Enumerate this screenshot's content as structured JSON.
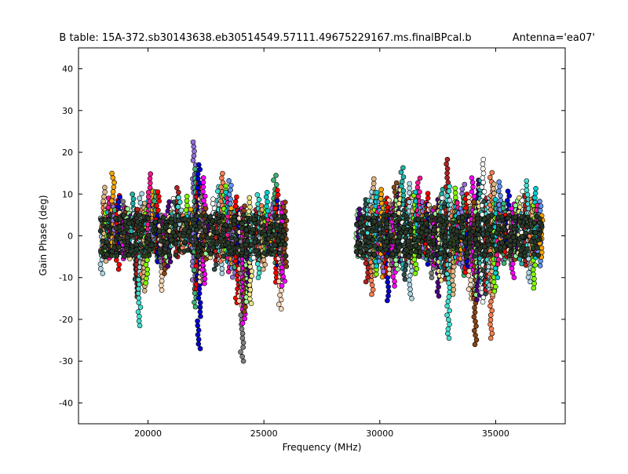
{
  "chart_data": {
    "type": "scatter",
    "title": "B table: 15A-372.sb30143638.eb30514549.57111.49675229167.ms.finalBPcal.b",
    "title_right": "Antenna='ea07'",
    "xlabel": "Frequency (MHz)",
    "ylabel": "Gain Phase (deg)",
    "xlim": [
      17000,
      38000
    ],
    "ylim": [
      -45,
      45
    ],
    "x_ticks": [
      20000,
      25000,
      30000,
      35000
    ],
    "y_ticks": [
      -40,
      -30,
      -20,
      -10,
      0,
      10,
      20,
      30,
      40
    ],
    "grid": false,
    "legend": "none",
    "spectral_windows": [
      {
        "x_start": 17950,
        "x_end": 18450,
        "ymin": -9,
        "ymax": 12
      },
      {
        "x_start": 18450,
        "x_end": 18950,
        "ymin": -8,
        "ymax": 15
      },
      {
        "x_start": 18950,
        "x_end": 19450,
        "ymin": -8,
        "ymax": 10
      },
      {
        "x_start": 19450,
        "x_end": 19950,
        "ymin": -21.5,
        "ymax": 11
      },
      {
        "x_start": 19950,
        "x_end": 20450,
        "ymin": -6,
        "ymax": 15
      },
      {
        "x_start": 20450,
        "x_end": 20950,
        "ymin": -13,
        "ymax": 8.5
      },
      {
        "x_start": 20950,
        "x_end": 21450,
        "ymin": -5,
        "ymax": 12
      },
      {
        "x_start": 21450,
        "x_end": 21950,
        "ymin": -4,
        "ymax": 10
      },
      {
        "x_start": 21950,
        "x_end": 22450,
        "ymin": -27,
        "ymax": 23
      },
      {
        "x_start": 22450,
        "x_end": 22950,
        "ymin": -8,
        "ymax": 9
      },
      {
        "x_start": 22950,
        "x_end": 23450,
        "ymin": -9,
        "ymax": 15.5
      },
      {
        "x_start": 23450,
        "x_end": 23950,
        "ymin": -16,
        "ymax": 14
      },
      {
        "x_start": 23950,
        "x_end": 24450,
        "ymin": -30,
        "ymax": 10
      },
      {
        "x_start": 24450,
        "x_end": 24950,
        "ymin": -10,
        "ymax": 10
      },
      {
        "x_start": 24950,
        "x_end": 25450,
        "ymin": -8,
        "ymax": 11
      },
      {
        "x_start": 25450,
        "x_end": 25950,
        "ymin": -17.5,
        "ymax": 14.5
      },
      {
        "x_start": 29000,
        "x_end": 29500,
        "ymin": -11,
        "ymax": 9
      },
      {
        "x_start": 29500,
        "x_end": 30000,
        "ymin": -14,
        "ymax": 14
      },
      {
        "x_start": 30000,
        "x_end": 30500,
        "ymin": -15.5,
        "ymax": 12
      },
      {
        "x_start": 30500,
        "x_end": 31000,
        "ymin": -12,
        "ymax": 16.5
      },
      {
        "x_start": 31000,
        "x_end": 31500,
        "ymin": -15,
        "ymax": 13.5
      },
      {
        "x_start": 31500,
        "x_end": 32000,
        "ymin": -9,
        "ymax": 14
      },
      {
        "x_start": 32000,
        "x_end": 32500,
        "ymin": -10,
        "ymax": 11
      },
      {
        "x_start": 32500,
        "x_end": 33000,
        "ymin": -24.5,
        "ymax": 19
      },
      {
        "x_start": 33000,
        "x_end": 33500,
        "ymin": -14,
        "ymax": 12
      },
      {
        "x_start": 33500,
        "x_end": 34000,
        "ymin": -15,
        "ymax": 13
      },
      {
        "x_start": 34000,
        "x_end": 34500,
        "ymin": -26,
        "ymax": 19
      },
      {
        "x_start": 34500,
        "x_end": 35000,
        "ymin": -24.5,
        "ymax": 16
      },
      {
        "x_start": 35000,
        "x_end": 35500,
        "ymin": -10,
        "ymax": 13
      },
      {
        "x_start": 35500,
        "x_end": 36000,
        "ymin": -10,
        "ymax": 11
      },
      {
        "x_start": 36000,
        "x_end": 36500,
        "ymin": -11,
        "ymax": 14
      },
      {
        "x_start": 36500,
        "x_end": 37000,
        "ymin": -12.5,
        "ymax": 12
      }
    ]
  },
  "colors": {
    "palette": [
      "#add8e6",
      "#ff7f50",
      "#deb887",
      "#7fff00",
      "#00ced1",
      "#ff1493",
      "#6495ed",
      "#ffa500",
      "#9370db",
      "#3cb371",
      "#ff0000",
      "#0000cd",
      "#ffdab9",
      "#808080",
      "#ff00ff",
      "#8b4513",
      "#98fb98",
      "#4b0082",
      "#f0e68c",
      "#20b2aa",
      "#ffffff",
      "#2f4f4f",
      "#b22222",
      "#40e0d0"
    ],
    "marker_edge": "#000000",
    "axes": "#000000",
    "background": "#ffffff"
  }
}
